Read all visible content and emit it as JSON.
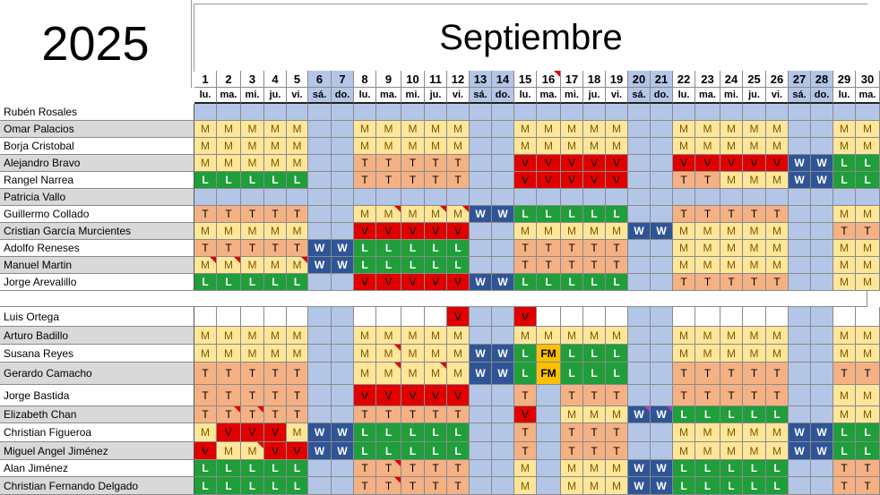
{
  "year": "2025",
  "month": "Septiembre",
  "days": [
    "1",
    "2",
    "3",
    "4",
    "5",
    "6",
    "7",
    "8",
    "9",
    "10",
    "11",
    "12",
    "13",
    "14",
    "15",
    "16",
    "17",
    "18",
    "19",
    "20",
    "21",
    "22",
    "23",
    "24",
    "25",
    "26",
    "27",
    "28",
    "29",
    "30"
  ],
  "weekdays": [
    "lu.",
    "ma.",
    "mi.",
    "ju.",
    "vi.",
    "sá.",
    "do.",
    "lu.",
    "ma.",
    "mi.",
    "ju.",
    "vi.",
    "sá.",
    "do.",
    "lu.",
    "ma.",
    "mi.",
    "ju.",
    "vi.",
    "sá.",
    "do.",
    "lu.",
    "ma.",
    "mi.",
    "ju.",
    "vi.",
    "sá.",
    "do.",
    "lu.",
    "ma."
  ],
  "colors": {
    "M": "#ffe699",
    "T": "#f4b183",
    "V": "#e00000",
    "L": "#1f9e3a",
    "W": "#2f5597",
    "FM": "#ffc000",
    "weekend": "#b4c6e7"
  },
  "group1": [
    {
      "name": "Rubén Rosales",
      "shifts": [
        "",
        "",
        "",
        "",
        "",
        "",
        "",
        "",
        "",
        "",
        "",
        "",
        "",
        "",
        "",
        "",
        "",
        "",
        "",
        "",
        "",
        "",
        "",
        "",
        "",
        "",
        "",
        "",
        "",
        ""
      ]
    },
    {
      "name": "Omar Palacios",
      "shifts": [
        "M",
        "M",
        "M",
        "M",
        "M",
        "",
        "",
        "M",
        "M",
        "M",
        "M",
        "M",
        "",
        "",
        "M",
        "M",
        "M",
        "M",
        "M",
        "",
        "",
        "M",
        "M",
        "M",
        "M",
        "M",
        "",
        "",
        "M",
        "M"
      ]
    },
    {
      "name": "Borja Cristobal",
      "shifts": [
        "M",
        "M",
        "M",
        "M",
        "M",
        "",
        "",
        "M",
        "M",
        "M",
        "M",
        "M",
        "",
        "",
        "M",
        "M",
        "M",
        "M",
        "M",
        "",
        "",
        "M",
        "M",
        "M",
        "M",
        "M",
        "",
        "",
        "M",
        "M"
      ]
    },
    {
      "name": "Alejandro Bravo",
      "shifts": [
        "M",
        "M",
        "M",
        "M",
        "M",
        "",
        "",
        "T",
        "T",
        "T",
        "T",
        "T",
        "",
        "",
        "V",
        "V",
        "V",
        "V",
        "V",
        "",
        "",
        "V",
        "V",
        "V",
        "V",
        "V",
        "W",
        "W",
        "L",
        "L"
      ]
    },
    {
      "name": "Rangel Narrea",
      "shifts": [
        "L",
        "L",
        "L",
        "L",
        "L",
        "",
        "",
        "T",
        "T",
        "T",
        "T",
        "T",
        "",
        "",
        "V",
        "V",
        "V",
        "V",
        "V",
        "",
        "",
        "T",
        "T",
        "M",
        "M",
        "M",
        "W",
        "W",
        "L",
        "L"
      ]
    },
    {
      "name": "Patricia Vallo",
      "shifts": [
        "",
        "",
        "",
        "",
        "",
        "",
        "",
        "",
        "",
        "",
        "",
        "",
        "",
        "",
        "",
        "",
        "",
        "",
        "",
        "",
        "",
        "",
        "",
        "",
        "",
        "",
        "",
        "",
        "",
        ""
      ]
    },
    {
      "name": "Guillermo Collado",
      "shifts": [
        "T",
        "T",
        "T",
        "T",
        "T",
        "",
        "",
        "M",
        "M",
        "M",
        "M",
        "M",
        "W",
        "W",
        "L",
        "L",
        "L",
        "L",
        "L",
        "",
        "",
        "T",
        "T",
        "T",
        "T",
        "T",
        "",
        "",
        "M",
        "M"
      ]
    },
    {
      "name": "Cristian García Murcientes",
      "shifts": [
        "M",
        "M",
        "M",
        "M",
        "M",
        "",
        "",
        "V",
        "V",
        "V",
        "V",
        "V",
        "",
        "",
        "M",
        "M",
        "M",
        "M",
        "M",
        "W",
        "W",
        "M",
        "M",
        "M",
        "M",
        "M",
        "",
        "",
        "T",
        "T"
      ]
    },
    {
      "name": "Adolfo Reneses",
      "shifts": [
        "T",
        "T",
        "T",
        "T",
        "T",
        "W",
        "W",
        "L",
        "L",
        "L",
        "L",
        "L",
        "",
        "",
        "T",
        "T",
        "T",
        "T",
        "T",
        "",
        "",
        "M",
        "M",
        "M",
        "M",
        "M",
        "",
        "",
        "M",
        "M"
      ]
    },
    {
      "name": "Manuel Martin",
      "shifts": [
        "M",
        "M",
        "M",
        "M",
        "M",
        "W",
        "W",
        "L",
        "L",
        "L",
        "L",
        "L",
        "",
        "",
        "T",
        "T",
        "T",
        "T",
        "T",
        "",
        "",
        "M",
        "M",
        "M",
        "M",
        "M",
        "",
        "",
        "M",
        "M"
      ]
    },
    {
      "name": "Jorge Arevalillo",
      "shifts": [
        "L",
        "L",
        "L",
        "L",
        "L",
        "",
        "",
        "V",
        "V",
        "V",
        "V",
        "V",
        "W",
        "W",
        "L",
        "L",
        "L",
        "L",
        "L",
        "",
        "",
        "T",
        "T",
        "T",
        "T",
        "T",
        "",
        "",
        "M",
        "M"
      ]
    }
  ],
  "group2": [
    {
      "name": "Luis Ortega",
      "shifts": [
        "",
        "",
        "",
        "",
        "",
        "",
        "",
        "",
        "",
        "",
        "",
        "V",
        "",
        "",
        "V",
        "",
        "",
        "",
        "",
        "",
        "",
        "",
        "",
        "",
        "",
        "",
        "",
        "",
        "",
        ""
      ]
    },
    {
      "name": "Arturo Badillo",
      "shifts": [
        "M",
        "M",
        "M",
        "M",
        "M",
        "",
        "",
        "M",
        "M",
        "M",
        "M",
        "M",
        "",
        "",
        "M",
        "M",
        "M",
        "M",
        "M",
        "",
        "",
        "M",
        "M",
        "M",
        "M",
        "M",
        "",
        "",
        "M",
        "M"
      ]
    },
    {
      "name": "Susana Reyes",
      "shifts": [
        "M",
        "M",
        "M",
        "M",
        "M",
        "",
        "",
        "M",
        "M",
        "M",
        "M",
        "M",
        "W",
        "W",
        "L",
        "FM",
        "L",
        "L",
        "L",
        "",
        "",
        "M",
        "M",
        "M",
        "M",
        "M",
        "",
        "",
        "M",
        "M"
      ]
    },
    {
      "name": "Gerardo Camacho",
      "shifts": [
        "T",
        "T",
        "T",
        "T",
        "T",
        "",
        "",
        "M",
        "M",
        "M",
        "M",
        "M",
        "W",
        "W",
        "L",
        "FM",
        "L",
        "L",
        "L",
        "",
        "",
        "T",
        "T",
        "T",
        "T",
        "T",
        "",
        "",
        "T",
        "T"
      ]
    },
    {
      "name": "Jorge Bastida",
      "shifts": [
        "T",
        "T",
        "T",
        "T",
        "T",
        "",
        "",
        "V",
        "V",
        "V",
        "V",
        "V",
        "",
        "",
        "T",
        "",
        "T",
        "T",
        "T",
        "",
        "",
        "T",
        "T",
        "T",
        "T",
        "T",
        "",
        "",
        "M",
        "M"
      ]
    },
    {
      "name": "Elizabeth Chan",
      "shifts": [
        "T",
        "T",
        "T",
        "T",
        "T",
        "",
        "",
        "T",
        "T",
        "T",
        "T",
        "T",
        "",
        "",
        "V",
        "",
        "M",
        "M",
        "M",
        "W",
        "W",
        "L",
        "L",
        "L",
        "L",
        "L",
        "",
        "",
        "M",
        "M"
      ]
    },
    {
      "name": "Christian Figueroa",
      "shifts": [
        "M",
        "V",
        "V",
        "V",
        "M",
        "W",
        "W",
        "L",
        "L",
        "L",
        "L",
        "L",
        "",
        "",
        "T",
        "",
        "T",
        "T",
        "T",
        "",
        "",
        "M",
        "M",
        "M",
        "M",
        "M",
        "W",
        "W",
        "L",
        "L"
      ]
    },
    {
      "name": "Miguel Angel Jiménez",
      "shifts": [
        "V",
        "M",
        "M",
        "V",
        "V",
        "W",
        "W",
        "L",
        "L",
        "L",
        "L",
        "L",
        "",
        "",
        "T",
        "",
        "T",
        "T",
        "T",
        "",
        "",
        "M",
        "M",
        "M",
        "M",
        "M",
        "W",
        "W",
        "L",
        "L"
      ]
    },
    {
      "name": "Alan Jiménez",
      "shifts": [
        "L",
        "L",
        "L",
        "L",
        "L",
        "",
        "",
        "T",
        "T",
        "T",
        "T",
        "T",
        "",
        "",
        "M",
        "",
        "M",
        "M",
        "M",
        "W",
        "W",
        "L",
        "L",
        "L",
        "L",
        "L",
        "",
        "",
        "T",
        "T"
      ]
    },
    {
      "name": "Christian Fernando Delgado",
      "shifts": [
        "L",
        "L",
        "L",
        "L",
        "L",
        "",
        "",
        "T",
        "T",
        "T",
        "T",
        "T",
        "",
        "",
        "M",
        "",
        "M",
        "M",
        "M",
        "W",
        "W",
        "L",
        "L",
        "L",
        "L",
        "L",
        "",
        "",
        "T",
        "T"
      ]
    }
  ]
}
